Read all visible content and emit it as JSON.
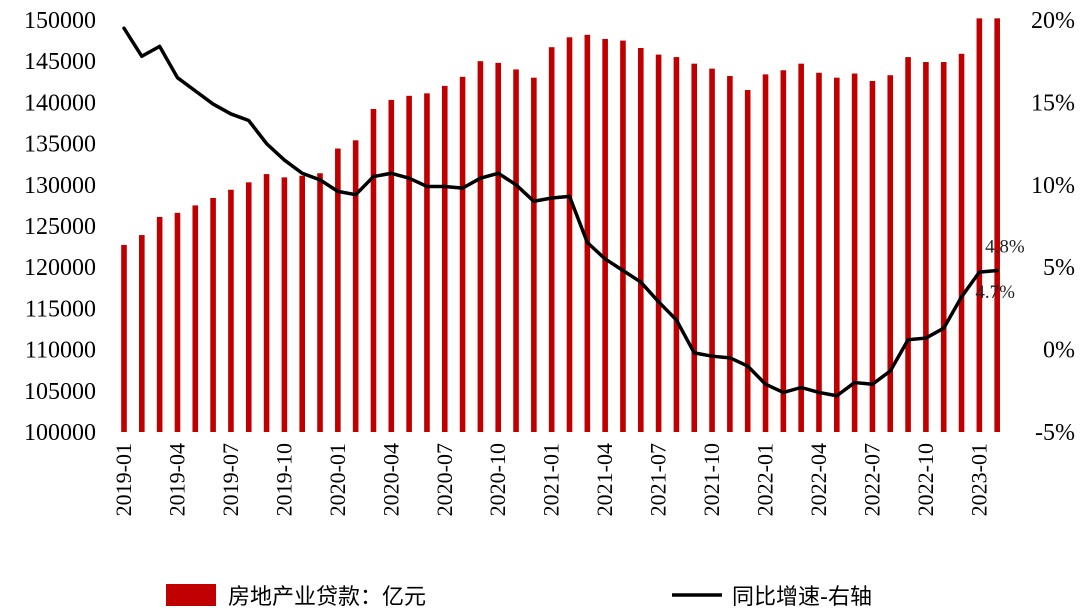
{
  "chart_data": {
    "type": "bar+line",
    "bar_color": "#c00000",
    "line_color": "#000000",
    "x": [
      "2019-01",
      "2019-02",
      "2019-03",
      "2019-04",
      "2019-05",
      "2019-06",
      "2019-07",
      "2019-08",
      "2019-09",
      "2019-10",
      "2019-11",
      "2019-12",
      "2020-01",
      "2020-02",
      "2020-03",
      "2020-04",
      "2020-05",
      "2020-06",
      "2020-07",
      "2020-08",
      "2020-09",
      "2020-10",
      "2020-11",
      "2020-12",
      "2021-01",
      "2021-02",
      "2021-03",
      "2021-04",
      "2021-05",
      "2021-06",
      "2021-07",
      "2021-08",
      "2021-09",
      "2021-10",
      "2021-11",
      "2021-12",
      "2022-01",
      "2022-02",
      "2022-03",
      "2022-04",
      "2022-05",
      "2022-06",
      "2022-07",
      "2022-08",
      "2022-09",
      "2022-10",
      "2022-11",
      "2022-12",
      "2023-01",
      "2023-02"
    ],
    "x_tick_labels": [
      "2019-01",
      "2019-04",
      "2019-07",
      "2019-10",
      "2020-01",
      "2020-04",
      "2020-07",
      "2020-10",
      "2021-01",
      "2021-04",
      "2021-07",
      "2021-10",
      "2022-01",
      "2022-04",
      "2022-07",
      "2022-10",
      "2023-01"
    ],
    "left_axis": {
      "ylim": [
        100000,
        150000
      ],
      "ticks": [
        "100000",
        "105000",
        "110000",
        "115000",
        "120000",
        "125000",
        "130000",
        "135000",
        "140000",
        "145000",
        "150000"
      ]
    },
    "right_axis": {
      "ylim": [
        -5,
        20
      ],
      "ticks": [
        "-5%",
        "0%",
        "5%",
        "10%",
        "15%",
        "20%"
      ]
    },
    "series": [
      {
        "name": "房地产业贷款：亿元",
        "kind": "bar",
        "axis": "left",
        "values": [
          122700,
          123900,
          126100,
          126600,
          127500,
          128400,
          129400,
          130300,
          131300,
          130900,
          131100,
          131400,
          134400,
          135400,
          139200,
          140300,
          140800,
          141100,
          142000,
          143100,
          145000,
          144800,
          144000,
          143000,
          146700,
          147900,
          148200,
          147700,
          147500,
          146600,
          145800,
          145500,
          144700,
          144100,
          143200,
          141500,
          143400,
          143900,
          144700,
          143600,
          143000,
          143500,
          142600,
          143300,
          145500,
          144900,
          144900,
          145900,
          150200,
          150200
        ]
      },
      {
        "name": "同比增速-右轴",
        "kind": "line",
        "axis": "right",
        "values": [
          19.5,
          17.8,
          18.4,
          16.5,
          15.7,
          14.9,
          14.3,
          13.9,
          12.5,
          11.5,
          10.7,
          10.3,
          9.6,
          9.4,
          10.5,
          10.7,
          10.4,
          9.9,
          9.9,
          9.8,
          10.4,
          10.7,
          10.0,
          9.0,
          9.2,
          9.3,
          6.5,
          5.5,
          4.8,
          4.1,
          2.9,
          1.8,
          -0.2,
          -0.4,
          -0.5,
          -1.0,
          -2.1,
          -2.6,
          -2.3,
          -2.6,
          -2.8,
          -2.0,
          -2.1,
          -1.3,
          0.6,
          0.7,
          1.3,
          3.2,
          4.7,
          4.8
        ]
      }
    ],
    "annotations": [
      {
        "text": "4.8%",
        "x": "2023-02",
        "series": "同比增速-右轴"
      },
      {
        "text": "4.7%",
        "x": "2023-01",
        "series": "同比增速-右轴"
      }
    ],
    "legend_position": "bottom"
  }
}
